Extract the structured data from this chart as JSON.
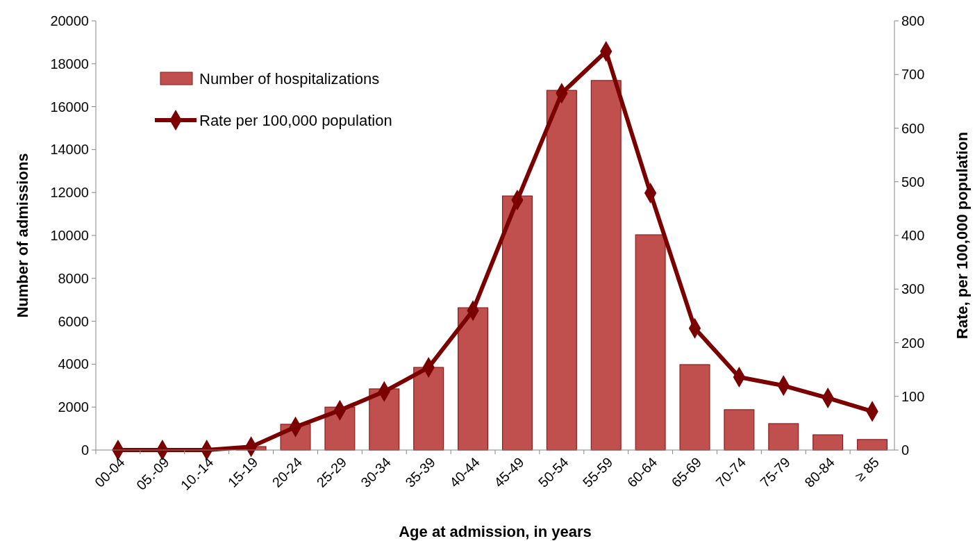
{
  "chart_data": {
    "type": "bar",
    "xlabel": "Age at admission, in years",
    "ylabel": "Number of admissions",
    "y2label": "Rate, per 100,000 population",
    "categories": [
      "00-04",
      "05.-09",
      "10.-14",
      "15-19",
      "20-24",
      "25-29",
      "30-34",
      "35-39",
      "40-44",
      "45-49",
      "50-54",
      "55-59",
      "60-64",
      "65-69",
      "70-74",
      "75-79",
      "80-84",
      "≥ 85"
    ],
    "series": [
      {
        "name": "Number of hospitalizations",
        "color": "#c0504d",
        "values": [
          0,
          0,
          0,
          160,
          1200,
          2000,
          2850,
          3850,
          6630,
          11840,
          16760,
          17220,
          10030,
          3980,
          1880,
          1230,
          710,
          490
        ]
      },
      {
        "name": "Rate per 100,000 population",
        "type": "line",
        "axis": "y2",
        "color": "#7b0000",
        "marker": "diamond",
        "values": [
          0,
          0,
          0,
          6,
          43,
          74,
          109,
          154,
          260,
          466,
          665,
          743,
          479,
          227,
          136,
          120,
          97,
          72
        ]
      }
    ],
    "ylim": [
      0,
      20000
    ],
    "yticks": [
      0,
      2000,
      4000,
      6000,
      8000,
      10000,
      12000,
      14000,
      16000,
      18000,
      20000
    ],
    "y2lim": [
      0,
      800
    ],
    "y2ticks": [
      0,
      100,
      200,
      300,
      400,
      500,
      600,
      700,
      800
    ],
    "legend": "top left",
    "grid": false
  }
}
